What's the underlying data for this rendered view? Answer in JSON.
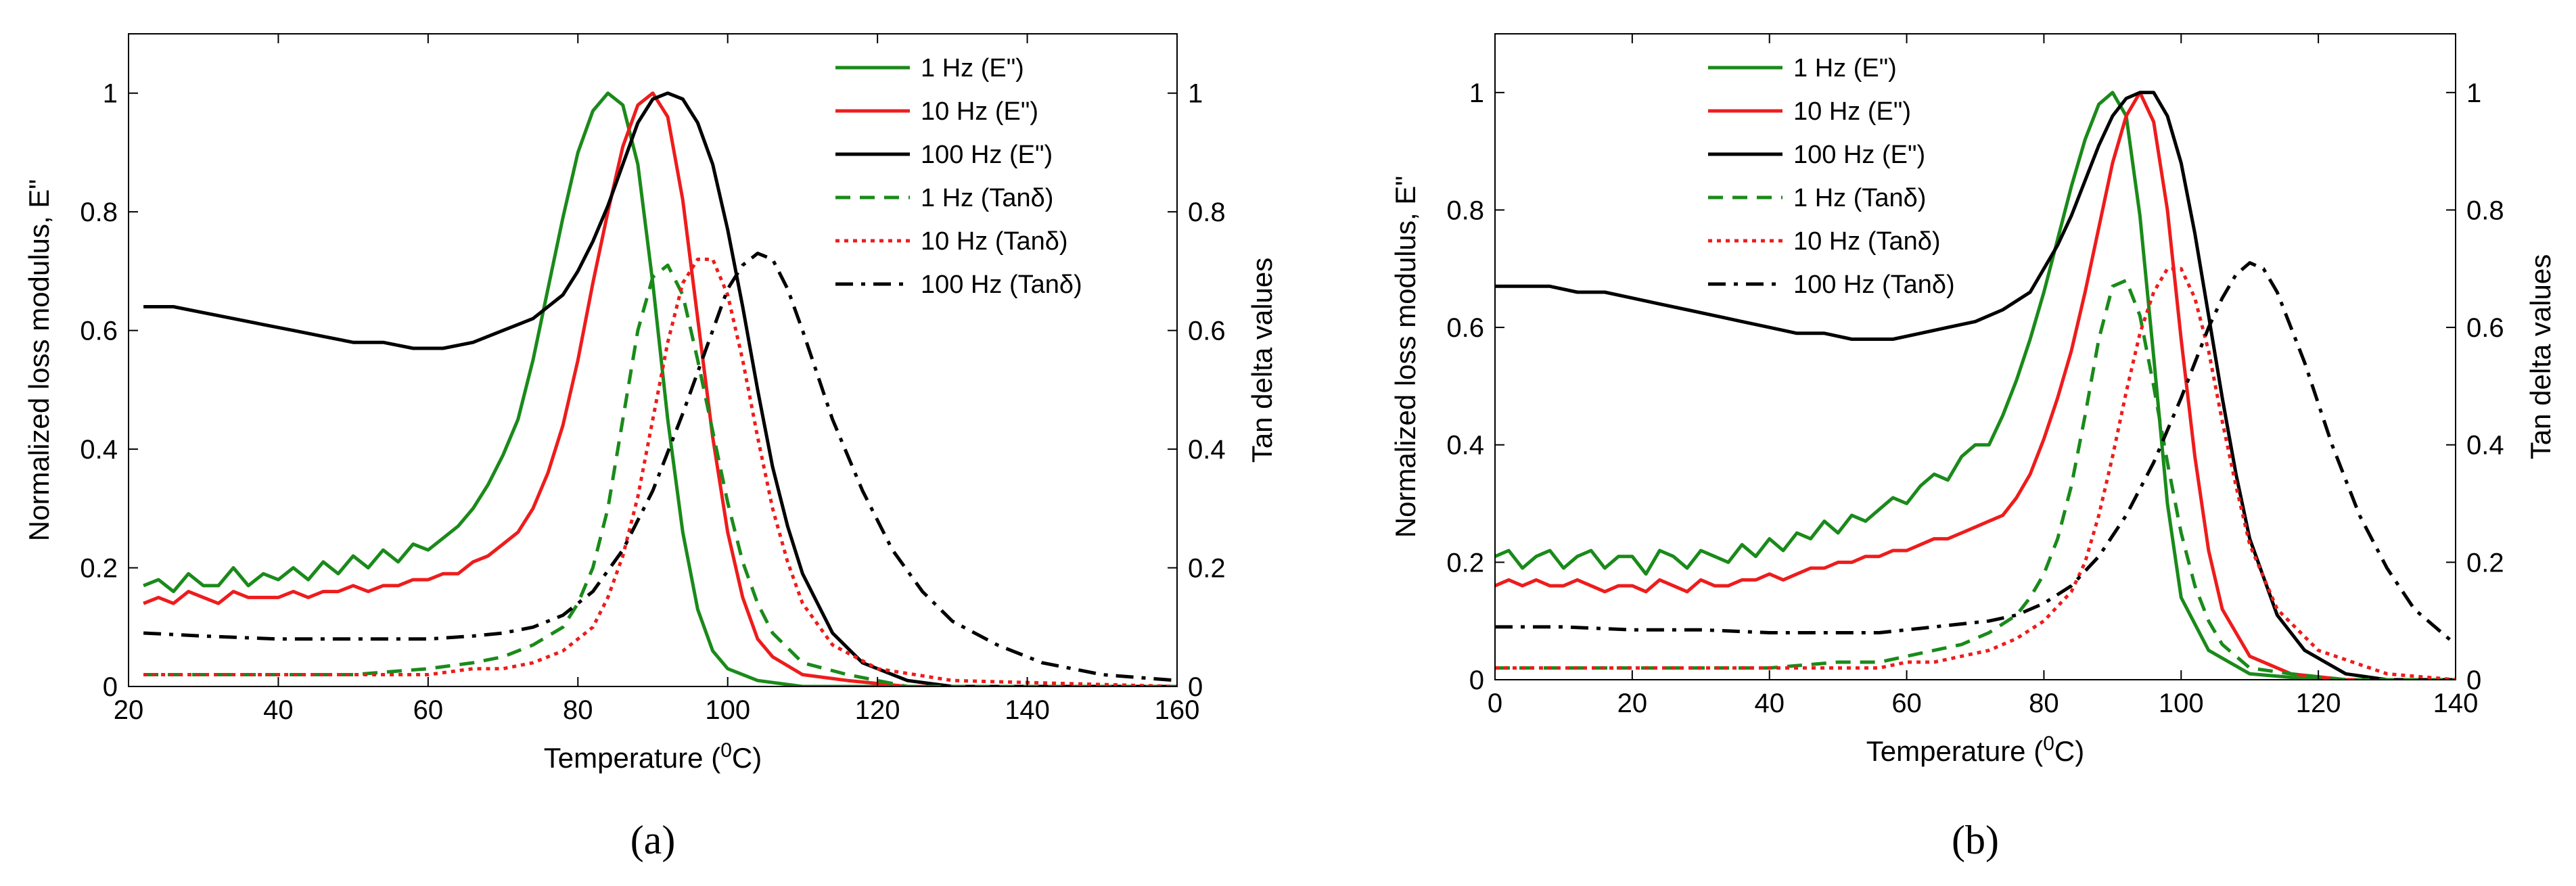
{
  "chart_data": [
    {
      "type": "line",
      "panel_label": "(a)",
      "xlabel": "Temperature (0C)",
      "xlabel_main": "Temperature (",
      "xlabel_sup": "0",
      "xlabel_end": "C)",
      "ylabel": "Normalized loss modulus, E\"",
      "y2label": "Tan delta values",
      "xlim": [
        20,
        160
      ],
      "ylim": [
        0,
        1.1
      ],
      "y2lim": [
        0,
        1.1
      ],
      "xticks": [
        "20",
        "40",
        "60",
        "80",
        "100",
        "120",
        "140",
        "160"
      ],
      "yticks": [
        "0",
        "0.2",
        "0.4",
        "0.6",
        "0.8",
        "1"
      ],
      "y2ticks": [
        "0",
        "0.2",
        "0.4",
        "0.6",
        "0.8",
        "1"
      ],
      "legend_position": "top-right",
      "series": [
        {
          "name": "1 Hz (E\")",
          "color": "#1a8a1a",
          "style": "solid",
          "axis": "left",
          "x": [
            22,
            24,
            26,
            28,
            30,
            32,
            34,
            36,
            38,
            40,
            42,
            44,
            46,
            48,
            50,
            52,
            54,
            56,
            58,
            60,
            62,
            64,
            66,
            68,
            70,
            72,
            74,
            76,
            78,
            80,
            82,
            84,
            86,
            88,
            90,
            92,
            94,
            96,
            98,
            100,
            104,
            110,
            120,
            160
          ],
          "y": [
            0.17,
            0.18,
            0.16,
            0.19,
            0.17,
            0.17,
            0.2,
            0.17,
            0.19,
            0.18,
            0.2,
            0.18,
            0.21,
            0.19,
            0.22,
            0.2,
            0.23,
            0.21,
            0.24,
            0.23,
            0.25,
            0.27,
            0.3,
            0.34,
            0.39,
            0.45,
            0.55,
            0.67,
            0.79,
            0.9,
            0.97,
            1.0,
            0.98,
            0.88,
            0.68,
            0.45,
            0.26,
            0.13,
            0.06,
            0.03,
            0.01,
            0.0,
            0.0,
            0.0
          ]
        },
        {
          "name": "10 Hz (E\")",
          "color": "#ee1c1c",
          "style": "solid",
          "axis": "left",
          "x": [
            22,
            24,
            26,
            28,
            30,
            32,
            34,
            36,
            38,
            40,
            42,
            44,
            46,
            48,
            50,
            52,
            54,
            56,
            58,
            60,
            62,
            64,
            66,
            68,
            70,
            72,
            74,
            76,
            78,
            80,
            82,
            84,
            86,
            88,
            90,
            92,
            94,
            96,
            98,
            100,
            102,
            104,
            106,
            110,
            116,
            124,
            160
          ],
          "y": [
            0.14,
            0.15,
            0.14,
            0.16,
            0.15,
            0.14,
            0.16,
            0.15,
            0.15,
            0.15,
            0.16,
            0.15,
            0.16,
            0.16,
            0.17,
            0.16,
            0.17,
            0.17,
            0.18,
            0.18,
            0.19,
            0.19,
            0.21,
            0.22,
            0.24,
            0.26,
            0.3,
            0.36,
            0.44,
            0.55,
            0.68,
            0.8,
            0.91,
            0.98,
            1.0,
            0.96,
            0.82,
            0.62,
            0.42,
            0.26,
            0.15,
            0.08,
            0.05,
            0.02,
            0.01,
            0.0,
            0.0
          ]
        },
        {
          "name": "100 Hz (E\")",
          "color": "#000000",
          "style": "solid",
          "axis": "left",
          "x": [
            22,
            26,
            30,
            34,
            38,
            42,
            46,
            50,
            54,
            58,
            62,
            66,
            70,
            74,
            78,
            80,
            82,
            84,
            86,
            88,
            90,
            92,
            94,
            96,
            98,
            100,
            102,
            104,
            106,
            108,
            110,
            114,
            118,
            124,
            130,
            160
          ],
          "y": [
            0.64,
            0.64,
            0.63,
            0.62,
            0.61,
            0.6,
            0.59,
            0.58,
            0.58,
            0.57,
            0.57,
            0.58,
            0.6,
            0.62,
            0.66,
            0.7,
            0.75,
            0.81,
            0.88,
            0.95,
            0.99,
            1.0,
            0.99,
            0.95,
            0.88,
            0.77,
            0.64,
            0.5,
            0.37,
            0.27,
            0.19,
            0.09,
            0.04,
            0.01,
            0.0,
            0.0
          ]
        },
        {
          "name": "1 Hz (Tanδ)",
          "color": "#1a8a1a",
          "style": "dashed",
          "axis": "right",
          "x": [
            22,
            30,
            40,
            50,
            60,
            66,
            70,
            74,
            78,
            80,
            82,
            84,
            86,
            88,
            90,
            92,
            94,
            96,
            98,
            100,
            102,
            104,
            106,
            110,
            116,
            124,
            160
          ],
          "y": [
            0.02,
            0.02,
            0.02,
            0.02,
            0.03,
            0.04,
            0.05,
            0.07,
            0.1,
            0.14,
            0.2,
            0.3,
            0.45,
            0.6,
            0.69,
            0.71,
            0.66,
            0.55,
            0.43,
            0.31,
            0.21,
            0.14,
            0.09,
            0.04,
            0.02,
            0.0,
            0.0
          ]
        },
        {
          "name": "10 Hz (Tanδ)",
          "color": "#ee1c1c",
          "style": "dotted",
          "axis": "right",
          "x": [
            22,
            30,
            40,
            50,
            60,
            66,
            70,
            74,
            78,
            82,
            84,
            86,
            88,
            90,
            92,
            94,
            96,
            98,
            100,
            102,
            104,
            106,
            108,
            110,
            114,
            120,
            130,
            160
          ],
          "y": [
            0.02,
            0.02,
            0.02,
            0.02,
            0.02,
            0.03,
            0.03,
            0.04,
            0.06,
            0.1,
            0.15,
            0.22,
            0.32,
            0.45,
            0.58,
            0.68,
            0.72,
            0.72,
            0.66,
            0.55,
            0.42,
            0.3,
            0.21,
            0.14,
            0.07,
            0.03,
            0.01,
            0.0
          ]
        },
        {
          "name": "100 Hz (Tanδ)",
          "color": "#000000",
          "style": "dashdot",
          "axis": "right",
          "x": [
            22,
            30,
            40,
            50,
            60,
            66,
            70,
            74,
            78,
            82,
            86,
            90,
            94,
            98,
            100,
            102,
            104,
            106,
            108,
            110,
            114,
            118,
            122,
            126,
            130,
            136,
            142,
            150,
            160
          ],
          "y": [
            0.09,
            0.085,
            0.08,
            0.08,
            0.08,
            0.085,
            0.09,
            0.1,
            0.12,
            0.16,
            0.23,
            0.33,
            0.46,
            0.6,
            0.67,
            0.71,
            0.73,
            0.72,
            0.67,
            0.6,
            0.45,
            0.33,
            0.23,
            0.16,
            0.11,
            0.07,
            0.04,
            0.02,
            0.01
          ]
        }
      ]
    },
    {
      "type": "line",
      "panel_label": "(b)",
      "xlabel": "Temperature (0C)",
      "xlabel_main": "Temperature (",
      "xlabel_sup": "0",
      "xlabel_end": "C)",
      "ylabel": "Normalized loss modulus, E\"",
      "y2label": "Tan delta values",
      "xlim": [
        0,
        140
      ],
      "ylim": [
        0,
        1.1
      ],
      "y2lim": [
        0,
        1.1
      ],
      "xticks": [
        "0",
        "20",
        "40",
        "60",
        "80",
        "100",
        "120",
        "140"
      ],
      "yticks": [
        "0",
        "0.2",
        "0.4",
        "0.6",
        "0.8",
        "1"
      ],
      "y2ticks": [
        "0",
        "0.2",
        "0.4",
        "0.6",
        "0.8",
        "1"
      ],
      "legend_position": "top-left",
      "series": [
        {
          "name": "1 Hz (E\")",
          "color": "#1a8a1a",
          "style": "solid",
          "axis": "left",
          "x": [
            0,
            2,
            4,
            6,
            8,
            10,
            12,
            14,
            16,
            18,
            20,
            22,
            24,
            26,
            28,
            30,
            32,
            34,
            36,
            38,
            40,
            42,
            44,
            46,
            48,
            50,
            52,
            54,
            56,
            58,
            60,
            62,
            64,
            66,
            68,
            70,
            72,
            74,
            76,
            78,
            80,
            82,
            84,
            86,
            88,
            90,
            92,
            94,
            96,
            98,
            100,
            104,
            110,
            120,
            140
          ],
          "y": [
            0.21,
            0.22,
            0.19,
            0.21,
            0.22,
            0.19,
            0.21,
            0.22,
            0.19,
            0.21,
            0.21,
            0.18,
            0.22,
            0.21,
            0.19,
            0.22,
            0.21,
            0.2,
            0.23,
            0.21,
            0.24,
            0.22,
            0.25,
            0.24,
            0.27,
            0.25,
            0.28,
            0.27,
            0.29,
            0.31,
            0.3,
            0.33,
            0.35,
            0.34,
            0.38,
            0.4,
            0.4,
            0.45,
            0.51,
            0.58,
            0.66,
            0.75,
            0.84,
            0.92,
            0.98,
            1.0,
            0.96,
            0.79,
            0.55,
            0.3,
            0.14,
            0.05,
            0.01,
            0.0,
            0.0
          ]
        },
        {
          "name": "10 Hz (E\")",
          "color": "#ee1c1c",
          "style": "solid",
          "axis": "left",
          "x": [
            0,
            2,
            4,
            6,
            8,
            10,
            12,
            14,
            16,
            18,
            20,
            22,
            24,
            26,
            28,
            30,
            32,
            34,
            36,
            38,
            40,
            42,
            44,
            46,
            48,
            50,
            52,
            54,
            56,
            58,
            60,
            62,
            64,
            66,
            68,
            70,
            72,
            74,
            76,
            78,
            80,
            82,
            84,
            86,
            88,
            90,
            92,
            94,
            96,
            98,
            100,
            102,
            104,
            106,
            110,
            116,
            124,
            140
          ],
          "y": [
            0.16,
            0.17,
            0.16,
            0.17,
            0.16,
            0.16,
            0.17,
            0.16,
            0.15,
            0.16,
            0.16,
            0.15,
            0.17,
            0.16,
            0.15,
            0.17,
            0.16,
            0.16,
            0.17,
            0.17,
            0.18,
            0.17,
            0.18,
            0.19,
            0.19,
            0.2,
            0.2,
            0.21,
            0.21,
            0.22,
            0.22,
            0.23,
            0.24,
            0.24,
            0.25,
            0.26,
            0.27,
            0.28,
            0.31,
            0.35,
            0.41,
            0.48,
            0.56,
            0.66,
            0.77,
            0.88,
            0.96,
            1.0,
            0.95,
            0.8,
            0.58,
            0.38,
            0.22,
            0.12,
            0.04,
            0.01,
            0.0,
            0.0
          ]
        },
        {
          "name": "100 Hz (E\")",
          "color": "#000000",
          "style": "solid",
          "axis": "left",
          "x": [
            0,
            4,
            8,
            12,
            16,
            20,
            24,
            28,
            32,
            36,
            40,
            44,
            48,
            52,
            54,
            58,
            62,
            66,
            70,
            74,
            78,
            80,
            82,
            84,
            86,
            88,
            90,
            92,
            94,
            96,
            98,
            100,
            102,
            104,
            106,
            108,
            110,
            114,
            118,
            124,
            130,
            140
          ],
          "y": [
            0.67,
            0.67,
            0.67,
            0.66,
            0.66,
            0.65,
            0.64,
            0.63,
            0.62,
            0.61,
            0.6,
            0.59,
            0.59,
            0.58,
            0.58,
            0.58,
            0.59,
            0.6,
            0.61,
            0.63,
            0.66,
            0.7,
            0.74,
            0.79,
            0.85,
            0.91,
            0.96,
            0.99,
            1.0,
            1.0,
            0.96,
            0.88,
            0.76,
            0.62,
            0.48,
            0.35,
            0.24,
            0.11,
            0.05,
            0.01,
            0.0,
            0.0
          ]
        },
        {
          "name": "1 Hz (Tanδ)",
          "color": "#1a8a1a",
          "style": "dashed",
          "axis": "right",
          "x": [
            0,
            10,
            20,
            30,
            40,
            50,
            56,
            60,
            64,
            68,
            72,
            76,
            78,
            80,
            82,
            84,
            86,
            88,
            90,
            92,
            94,
            96,
            98,
            100,
            102,
            104,
            106,
            110,
            116,
            124,
            140
          ],
          "y": [
            0.02,
            0.02,
            0.02,
            0.02,
            0.02,
            0.03,
            0.03,
            0.04,
            0.05,
            0.06,
            0.08,
            0.11,
            0.14,
            0.18,
            0.24,
            0.33,
            0.45,
            0.58,
            0.67,
            0.68,
            0.62,
            0.5,
            0.37,
            0.25,
            0.16,
            0.1,
            0.06,
            0.02,
            0.01,
            0.0,
            0.0
          ]
        },
        {
          "name": "10 Hz (Tanδ)",
          "color": "#ee1c1c",
          "style": "dotted",
          "axis": "right",
          "x": [
            0,
            10,
            20,
            30,
            40,
            50,
            56,
            60,
            64,
            68,
            72,
            76,
            80,
            84,
            86,
            88,
            90,
            92,
            94,
            96,
            98,
            100,
            102,
            104,
            106,
            108,
            110,
            114,
            120,
            130,
            140
          ],
          "y": [
            0.02,
            0.02,
            0.02,
            0.02,
            0.02,
            0.02,
            0.02,
            0.03,
            0.03,
            0.04,
            0.05,
            0.07,
            0.1,
            0.15,
            0.2,
            0.28,
            0.38,
            0.49,
            0.59,
            0.66,
            0.7,
            0.7,
            0.65,
            0.56,
            0.44,
            0.33,
            0.23,
            0.12,
            0.05,
            0.01,
            0.0
          ]
        },
        {
          "name": "100 Hz (Tanδ)",
          "color": "#000000",
          "style": "dashdot",
          "axis": "right",
          "x": [
            0,
            10,
            20,
            30,
            40,
            50,
            56,
            60,
            64,
            68,
            72,
            76,
            80,
            84,
            88,
            92,
            96,
            100,
            104,
            106,
            108,
            110,
            112,
            114,
            118,
            122,
            126,
            130,
            134,
            140
          ],
          "y": [
            0.09,
            0.09,
            0.085,
            0.085,
            0.08,
            0.08,
            0.08,
            0.085,
            0.09,
            0.095,
            0.1,
            0.11,
            0.13,
            0.16,
            0.21,
            0.28,
            0.37,
            0.48,
            0.6,
            0.65,
            0.69,
            0.71,
            0.7,
            0.66,
            0.54,
            0.4,
            0.28,
            0.19,
            0.12,
            0.06
          ]
        }
      ]
    }
  ]
}
